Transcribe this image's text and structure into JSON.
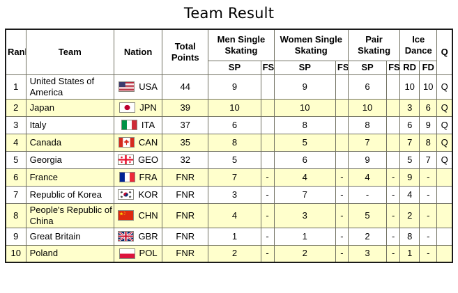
{
  "title": "Team Result",
  "colors": {
    "row_highlight": "#FFFFCC",
    "row_plain": "#FFFFFF",
    "grid_border": "#6F6F60",
    "outer_border": "#1A1A1A",
    "text": "#000000",
    "background": "#FFFFFF"
  },
  "chart_data": {
    "type": "table",
    "title": "Team Result",
    "header": {
      "rank": "Rank",
      "team": "Team",
      "nation": "Nation",
      "total_points": "Total Points",
      "groups": [
        {
          "label": "Men Single Skating",
          "sub": [
            "SP",
            "FS"
          ]
        },
        {
          "label": "Women Single Skating",
          "sub": [
            "SP",
            "FS"
          ]
        },
        {
          "label": "Pair Skating",
          "sub": [
            "SP",
            "FS"
          ]
        },
        {
          "label": "Ice Dance",
          "sub": [
            "RD",
            "FD"
          ]
        }
      ],
      "qualified": "Q"
    },
    "rows": [
      {
        "rank": "1",
        "team": "United States of America",
        "nation_code": "USA",
        "flag": "usa-flag-icon",
        "total_points": "44",
        "men_sp": "9",
        "men_fs": "",
        "women_sp": "9",
        "women_fs": "",
        "pair_sp": "6",
        "pair_fs": "",
        "ice_rd": "10",
        "ice_fd": "10",
        "q": "Q",
        "highlighted": false
      },
      {
        "rank": "2",
        "team": "Japan",
        "nation_code": "JPN",
        "flag": "jpn-flag-icon",
        "total_points": "39",
        "men_sp": "10",
        "men_fs": "",
        "women_sp": "10",
        "women_fs": "",
        "pair_sp": "10",
        "pair_fs": "",
        "ice_rd": "3",
        "ice_fd": "6",
        "q": "Q",
        "highlighted": true
      },
      {
        "rank": "3",
        "team": "Italy",
        "nation_code": "ITA",
        "flag": "ita-flag-icon",
        "total_points": "37",
        "men_sp": "6",
        "men_fs": "",
        "women_sp": "8",
        "women_fs": "",
        "pair_sp": "8",
        "pair_fs": "",
        "ice_rd": "6",
        "ice_fd": "9",
        "q": "Q",
        "highlighted": false
      },
      {
        "rank": "4",
        "team": "Canada",
        "nation_code": "CAN",
        "flag": "can-flag-icon",
        "total_points": "35",
        "men_sp": "8",
        "men_fs": "",
        "women_sp": "5",
        "women_fs": "",
        "pair_sp": "7",
        "pair_fs": "",
        "ice_rd": "7",
        "ice_fd": "8",
        "q": "Q",
        "highlighted": true
      },
      {
        "rank": "5",
        "team": "Georgia",
        "nation_code": "GEO",
        "flag": "geo-flag-icon",
        "total_points": "32",
        "men_sp": "5",
        "men_fs": "",
        "women_sp": "6",
        "women_fs": "",
        "pair_sp": "9",
        "pair_fs": "",
        "ice_rd": "5",
        "ice_fd": "7",
        "q": "Q",
        "highlighted": false
      },
      {
        "rank": "6",
        "team": "France",
        "nation_code": "FRA",
        "flag": "fra-flag-icon",
        "total_points": "FNR",
        "men_sp": "7",
        "men_fs": "-",
        "women_sp": "4",
        "women_fs": "-",
        "pair_sp": "4",
        "pair_fs": "-",
        "ice_rd": "9",
        "ice_fd": "-",
        "q": "",
        "highlighted": true
      },
      {
        "rank": "7",
        "team": "Republic of Korea",
        "nation_code": "KOR",
        "flag": "kor-flag-icon",
        "total_points": "FNR",
        "men_sp": "3",
        "men_fs": "-",
        "women_sp": "7",
        "women_fs": "-",
        "pair_sp": "-",
        "pair_fs": "-",
        "ice_rd": "4",
        "ice_fd": "-",
        "q": "",
        "highlighted": false
      },
      {
        "rank": "8",
        "team": "People's Republic of China",
        "nation_code": "CHN",
        "flag": "chn-flag-icon",
        "total_points": "FNR",
        "men_sp": "4",
        "men_fs": "-",
        "women_sp": "3",
        "women_fs": "-",
        "pair_sp": "5",
        "pair_fs": "-",
        "ice_rd": "2",
        "ice_fd": "-",
        "q": "",
        "highlighted": true
      },
      {
        "rank": "9",
        "team": "Great Britain",
        "nation_code": "GBR",
        "flag": "gbr-flag-icon",
        "total_points": "FNR",
        "men_sp": "1",
        "men_fs": "-",
        "women_sp": "1",
        "women_fs": "-",
        "pair_sp": "2",
        "pair_fs": "-",
        "ice_rd": "8",
        "ice_fd": "-",
        "q": "",
        "highlighted": false
      },
      {
        "rank": "10",
        "team": "Poland",
        "nation_code": "POL",
        "flag": "pol-flag-icon",
        "total_points": "FNR",
        "men_sp": "2",
        "men_fs": "-",
        "women_sp": "2",
        "women_fs": "-",
        "pair_sp": "3",
        "pair_fs": "-",
        "ice_rd": "1",
        "ice_fd": "-",
        "q": "",
        "highlighted": true
      }
    ]
  }
}
